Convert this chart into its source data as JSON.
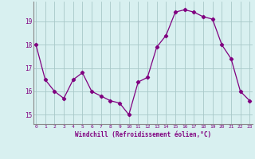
{
  "x": [
    0,
    1,
    2,
    3,
    4,
    5,
    6,
    7,
    8,
    9,
    10,
    11,
    12,
    13,
    14,
    15,
    16,
    17,
    18,
    19,
    20,
    21,
    22,
    23
  ],
  "y": [
    18.0,
    16.5,
    16.0,
    15.7,
    16.5,
    16.8,
    16.0,
    15.8,
    15.6,
    15.5,
    15.0,
    16.4,
    16.6,
    17.9,
    18.4,
    19.4,
    19.5,
    19.4,
    19.2,
    19.1,
    18.0,
    17.4,
    16.0,
    15.6
  ],
  "line_color": "#800080",
  "marker": "D",
  "marker_size": 2.2,
  "bg_color": "#d8f0f0",
  "grid_color": "#a8c8c8",
  "xlabel": "Windchill (Refroidissement éolien,°C)",
  "xlabel_color": "#800080",
  "tick_color": "#800080",
  "yticks": [
    15,
    16,
    17,
    18,
    19
  ],
  "xticks": [
    0,
    1,
    2,
    3,
    4,
    5,
    6,
    7,
    8,
    9,
    10,
    11,
    12,
    13,
    14,
    15,
    16,
    17,
    18,
    19,
    20,
    21,
    22,
    23
  ],
  "ylim": [
    14.6,
    19.85
  ],
  "xlim": [
    -0.3,
    23.3
  ]
}
